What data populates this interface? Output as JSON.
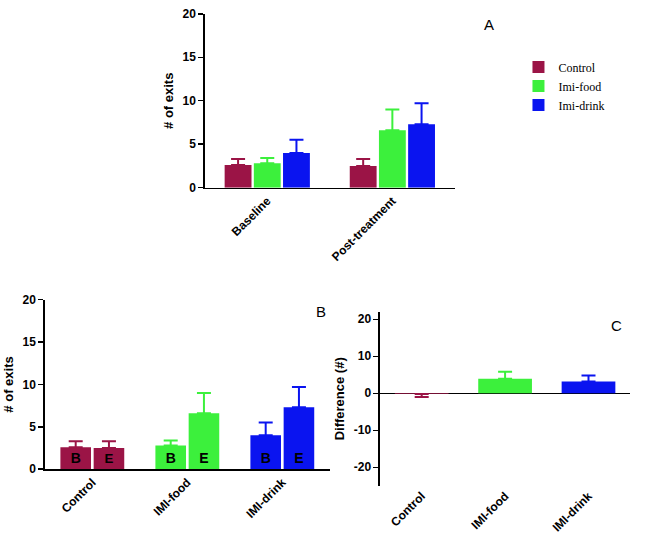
{
  "chart_data": [
    {
      "type": "bar",
      "annotations": [
        "A"
      ],
      "ylabel": "# of exits",
      "categories": [
        "Baseline",
        "Post-treatment"
      ],
      "series": [
        {
          "name": "Control",
          "color": "#9b1446",
          "values": [
            2.6,
            2.5
          ],
          "errors": [
            0.7,
            0.8
          ]
        },
        {
          "name": "Imi-food",
          "color": "#3cf03c",
          "values": [
            2.8,
            6.6
          ],
          "errors": [
            0.6,
            2.4
          ]
        },
        {
          "name": "Imi-drink",
          "color": "#0a14f0",
          "values": [
            4.0,
            7.3
          ],
          "errors": [
            1.5,
            2.4
          ]
        }
      ],
      "ylim": [
        0,
        20
      ],
      "yticks": [
        0,
        5,
        10,
        15,
        20
      ],
      "legend": "right"
    },
    {
      "type": "bar",
      "annotations": [
        "B"
      ],
      "ylabel": "# of exits",
      "categories": [
        "Control",
        "IMI-food",
        "IMI-drink"
      ],
      "series": [
        {
          "name": "B",
          "colors": [
            "#9b1446",
            "#3cf03c",
            "#0a14f0"
          ],
          "values": [
            2.6,
            2.8,
            4.0
          ],
          "errors": [
            0.7,
            0.6,
            1.5
          ]
        },
        {
          "name": "E",
          "colors": [
            "#9b1446",
            "#3cf03c",
            "#0a14f0"
          ],
          "values": [
            2.5,
            6.6,
            7.3
          ],
          "errors": [
            0.8,
            2.4,
            2.4
          ]
        }
      ],
      "ylim": [
        0,
        20
      ],
      "yticks": [
        0,
        5,
        10,
        15,
        20
      ]
    },
    {
      "type": "bar",
      "annotations": [
        "C"
      ],
      "ylabel": "Difference (#)",
      "categories": [
        "Control",
        "IMI-food",
        "IMI-drink"
      ],
      "values": [
        -0.2,
        3.9,
        3.2
      ],
      "errors": [
        0.8,
        1.9,
        1.6
      ],
      "colors": [
        "#9b1446",
        "#3cf03c",
        "#0a14f0"
      ],
      "ylim": [
        -25,
        22
      ],
      "yticks": [
        -20,
        -10,
        0,
        10,
        20
      ]
    }
  ]
}
